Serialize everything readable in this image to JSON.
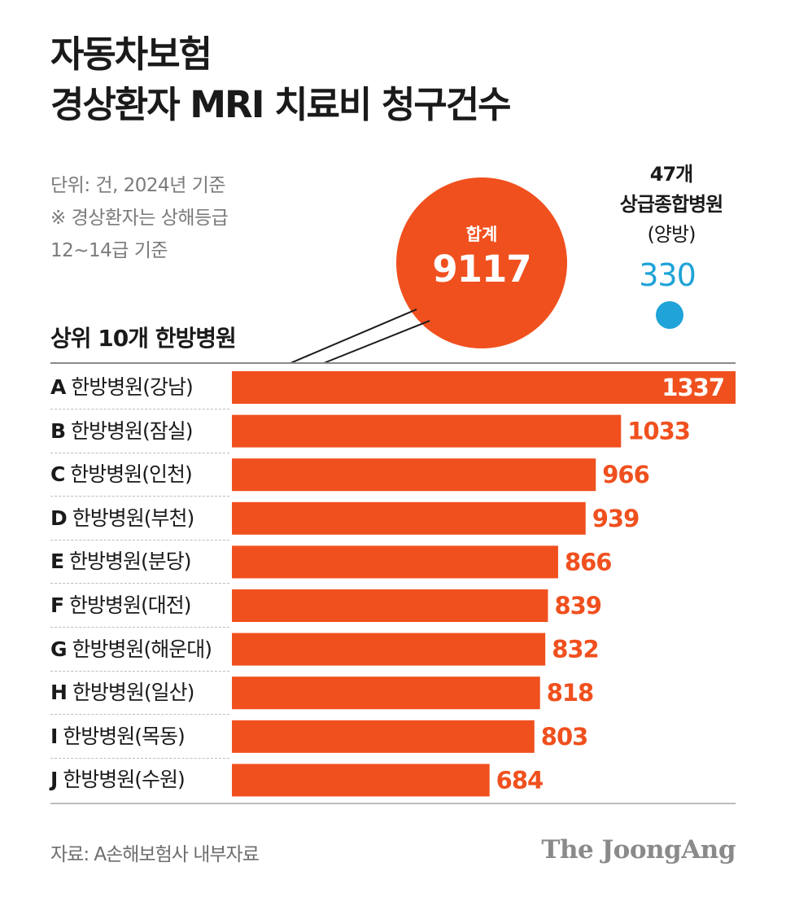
{
  "title_line1": "자동차보험",
  "title_line2": "경상환자 MRI 치료비 청구건수",
  "unit_note": "단위: 건, 2024년 기준",
  "note_line1": "※ 경상환자는 상해등급",
  "note_line2": "12~14급 기준",
  "total": {
    "label": "합계",
    "value": "9117"
  },
  "comparison": {
    "line1": "47개",
    "line2": "상급종합병원",
    "line3": "(양방)",
    "value": "330"
  },
  "section_label": "상위 10개 한방병원",
  "source": "자료: A손해보험사 내부자료",
  "brand": "The JoongAng",
  "colors": {
    "bar": "#f0501e",
    "comparison": "#1fa3d8"
  },
  "chart_data": {
    "type": "bar",
    "orientation": "horizontal",
    "categories": [
      "A 한방병원(강남)",
      "B 한방병원(잠실)",
      "C 한방병원(인천)",
      "D 한방병원(부천)",
      "E 한방병원(분당)",
      "F 한방병원(대전)",
      "G 한방병원(해운대)",
      "H 한방병원(일산)",
      "I 한방병원(목동)",
      "J 한방병원(수원)"
    ],
    "letters": [
      "A",
      "B",
      "C",
      "D",
      "E",
      "F",
      "G",
      "H",
      "I",
      "J"
    ],
    "names": [
      "한방병원(강남)",
      "한방병원(잠실)",
      "한방병원(인천)",
      "한방병원(부천)",
      "한방병원(분당)",
      "한방병원(대전)",
      "한방병원(해운대)",
      "한방병원(일산)",
      "한방병원(목동)",
      "한방병원(수원)"
    ],
    "values": [
      1337,
      1033,
      966,
      939,
      866,
      839,
      832,
      818,
      803,
      684
    ],
    "xlim": [
      0,
      1337
    ],
    "grid": false,
    "legend": "none"
  }
}
